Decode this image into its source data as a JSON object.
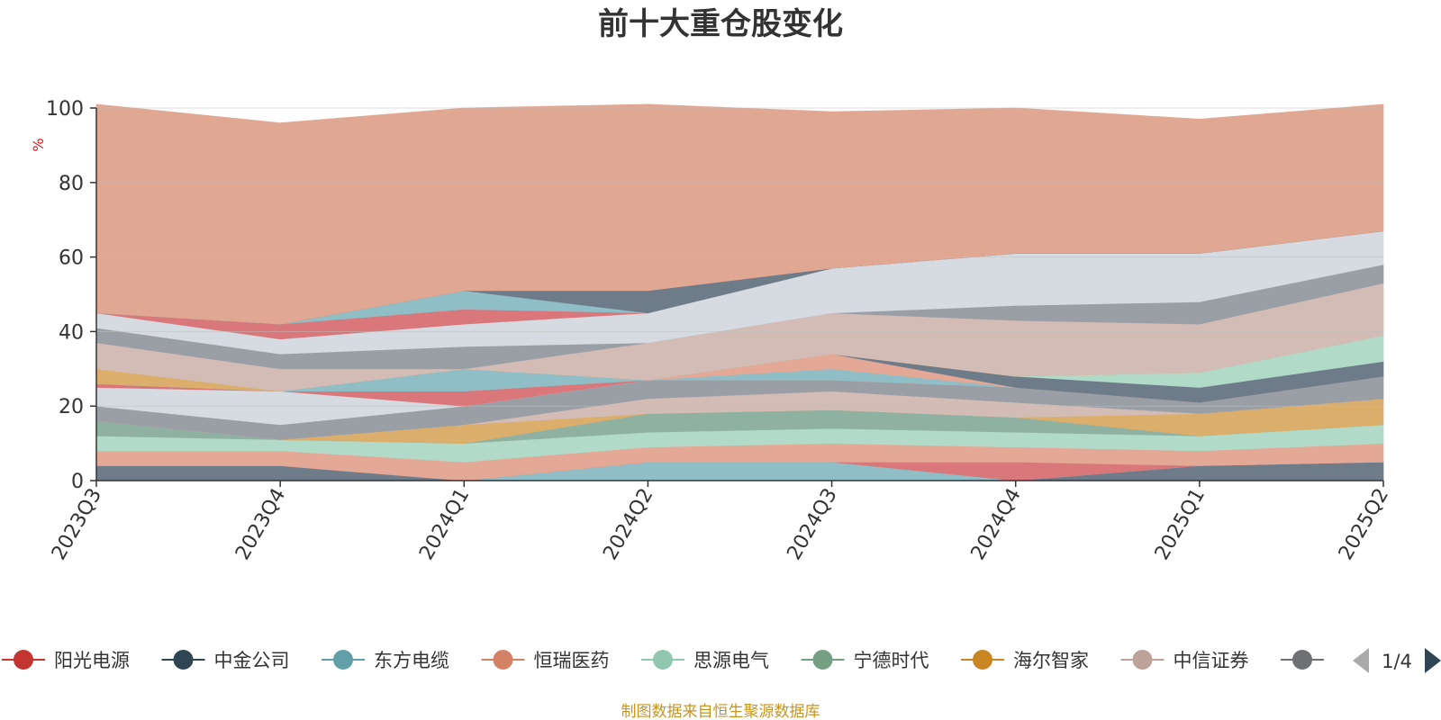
{
  "chart_data": {
    "type": "area",
    "stacked": true,
    "title": "前十大重仓股变化",
    "ylabel": "%",
    "ylim": [
      0,
      100
    ],
    "yticks": [
      0,
      20,
      40,
      60,
      80,
      100
    ],
    "grid": true,
    "legend_position": "bottom",
    "legend_page": "1/4",
    "x": [
      "2023Q3",
      "2023Q4",
      "2024Q1",
      "2024Q2",
      "2024Q3",
      "2024Q4",
      "2025Q1",
      "2025Q2"
    ],
    "series": [
      {
        "name": "",
        "color": "#6e7b89",
        "values": [
          4,
          4,
          0,
          0,
          0,
          0,
          4,
          5
        ]
      },
      {
        "name": "",
        "color": "#8fbec6",
        "values": [
          0,
          0,
          0,
          5,
          5,
          0,
          0,
          0
        ]
      },
      {
        "name": "",
        "color": "#d9777a",
        "values": [
          0,
          0,
          0,
          0,
          0,
          5,
          0,
          0
        ]
      },
      {
        "name": "",
        "color": "#e3a896",
        "values": [
          4,
          4,
          5,
          4,
          5,
          4,
          4,
          5
        ]
      },
      {
        "name": "",
        "color": "#b1dac9",
        "values": [
          4,
          3,
          5,
          4,
          4,
          4,
          4,
          5
        ]
      },
      {
        "name": "",
        "color": "#8fb1a2",
        "values": [
          4,
          0,
          0,
          5,
          5,
          4,
          0,
          0
        ]
      },
      {
        "name": "",
        "color": "#dcae6c",
        "values": [
          0,
          0,
          5,
          0,
          0,
          0,
          6,
          7
        ]
      },
      {
        "name": "",
        "color": "#d3bcb6",
        "values": [
          0,
          0,
          0,
          4,
          5,
          4,
          0,
          0
        ]
      },
      {
        "name": "",
        "color": "#9a9fa5",
        "values": [
          4,
          4,
          5,
          5,
          3,
          4,
          3,
          6
        ]
      },
      {
        "name": "",
        "color": "#d6dbe1",
        "values": [
          5,
          9,
          0,
          0,
          0,
          0,
          0,
          0
        ]
      },
      {
        "name": "",
        "color": "#d9777a",
        "values": [
          1,
          0,
          4,
          0,
          0,
          0,
          0,
          0
        ]
      },
      {
        "name": "",
        "color": "#8fbec6",
        "values": [
          0,
          0,
          6,
          0,
          3,
          0,
          0,
          0
        ]
      },
      {
        "name": "",
        "color": "#e3a896",
        "values": [
          0,
          0,
          0,
          0,
          4,
          0,
          0,
          0
        ]
      },
      {
        "name": "",
        "color": "#6e7b89",
        "values": [
          0,
          0,
          0,
          0,
          0,
          3,
          4,
          4
        ]
      },
      {
        "name": "",
        "color": "#b1dac9",
        "values": [
          0,
          0,
          0,
          0,
          0,
          0,
          4,
          7
        ]
      },
      {
        "name": "",
        "color": "#dcae6c",
        "values": [
          4,
          0,
          0,
          0,
          0,
          0,
          0,
          0
        ]
      },
      {
        "name": "",
        "color": "#d3bcb6",
        "values": [
          7,
          6,
          0,
          10,
          11,
          15,
          13,
          14
        ]
      },
      {
        "name": "",
        "color": "#9a9fa5",
        "values": [
          4,
          4,
          6,
          0,
          0,
          4,
          6,
          5
        ]
      },
      {
        "name": "",
        "color": "#d6dbe1",
        "values": [
          4,
          4,
          6,
          8,
          12,
          14,
          13,
          9
        ]
      },
      {
        "name": "",
        "color": "#d9777a",
        "values": [
          0,
          4,
          4,
          0,
          0,
          0,
          0,
          0
        ]
      },
      {
        "name": "",
        "color": "#8fbec6",
        "values": [
          0,
          0,
          5,
          0,
          0,
          0,
          0,
          0
        ]
      },
      {
        "name": "",
        "color": "#6e7b89",
        "values": [
          0,
          0,
          0,
          6,
          0,
          0,
          0,
          0
        ]
      },
      {
        "name": "",
        "color": "#e0a792",
        "values": [
          56,
          54,
          49,
          50,
          42,
          39,
          36,
          34
        ]
      }
    ],
    "legend": [
      {
        "name": "阳光电源",
        "color": "#c23531"
      },
      {
        "name": "中金公司",
        "color": "#2f4554"
      },
      {
        "name": "东方电缆",
        "color": "#61a0a8"
      },
      {
        "name": "恒瑞医药",
        "color": "#d48265"
      },
      {
        "name": "思源电气",
        "color": "#91c7ae"
      },
      {
        "name": "宁德时代",
        "color": "#749f83"
      },
      {
        "name": "海尔智家",
        "color": "#ca8622"
      },
      {
        "name": "中信证券",
        "color": "#bda29a"
      },
      {
        "name": "",
        "color": "#6e7074"
      }
    ]
  },
  "footer": "制图数据来自恒生聚源数据库",
  "colors": {
    "ylabel": "#e0131a",
    "footer": "#c8941f",
    "axis": "#333333",
    "grid": "#c0c0c0",
    "page_arrow_prev": "#aaaaaa",
    "page_arrow_next": "#2f4554"
  }
}
